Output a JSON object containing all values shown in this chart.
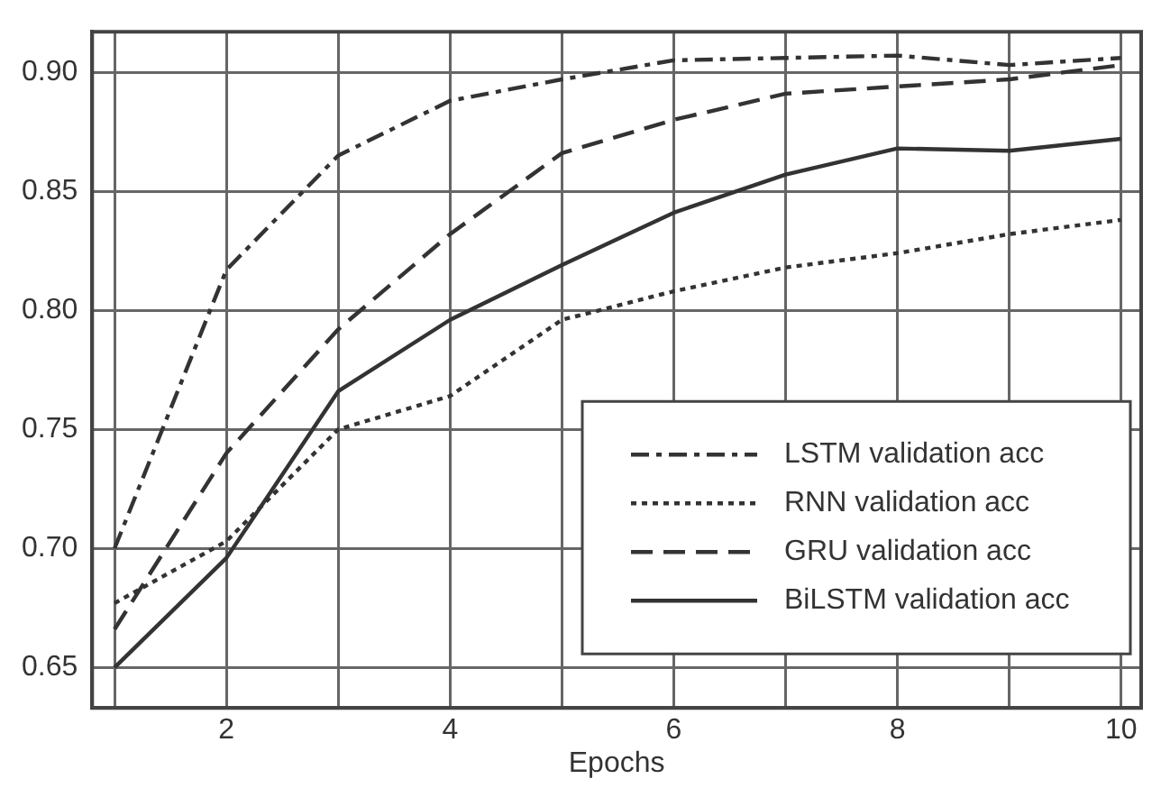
{
  "chart_data": {
    "type": "line",
    "xlabel": "Epochs",
    "x": [
      1,
      2,
      3,
      4,
      5,
      6,
      7,
      8,
      9,
      10
    ],
    "series": [
      {
        "name": "LSTM validation acc",
        "color": "#333333",
        "line_style": "dashdot",
        "values": [
          0.7,
          0.817,
          0.865,
          0.888,
          0.897,
          0.905,
          0.906,
          0.907,
          0.903,
          0.906
        ]
      },
      {
        "name": "RNN validation acc",
        "color": "#333333",
        "line_style": "dotted",
        "values": [
          0.677,
          0.703,
          0.75,
          0.764,
          0.796,
          0.808,
          0.818,
          0.824,
          0.832,
          0.838
        ]
      },
      {
        "name": "GRU validation acc",
        "color": "#333333",
        "line_style": "dashed",
        "values": [
          0.666,
          0.74,
          0.792,
          0.832,
          0.866,
          0.88,
          0.891,
          0.894,
          0.897,
          0.903
        ]
      },
      {
        "name": "BiLSTM validation acc",
        "color": "#333333",
        "line_style": "solid",
        "values": [
          0.65,
          0.696,
          0.766,
          0.796,
          0.819,
          0.841,
          0.857,
          0.868,
          0.867,
          0.872
        ]
      }
    ],
    "xlim": [
      0.8,
      10.18
    ],
    "xticks": [
      {
        "value": 1,
        "label": null
      },
      2,
      {
        "value": 3,
        "label": null
      },
      4,
      {
        "value": 5,
        "label": null
      },
      6,
      {
        "value": 7,
        "label": null
      },
      8,
      {
        "value": 9,
        "label": null
      },
      10
    ],
    "ylim": [
      0.633,
      0.917
    ],
    "yticks": [
      {
        "value": 0.65,
        "label": "0.65"
      },
      {
        "value": 0.7,
        "label": "0.70"
      },
      {
        "value": 0.75,
        "label": "0.75"
      },
      {
        "value": 0.8,
        "label": "0.80"
      },
      {
        "value": 0.85,
        "label": "0.85"
      },
      {
        "value": 0.9,
        "label": "0.90"
      }
    ],
    "grid": true,
    "legend": "bottom right",
    "marker": "none"
  }
}
